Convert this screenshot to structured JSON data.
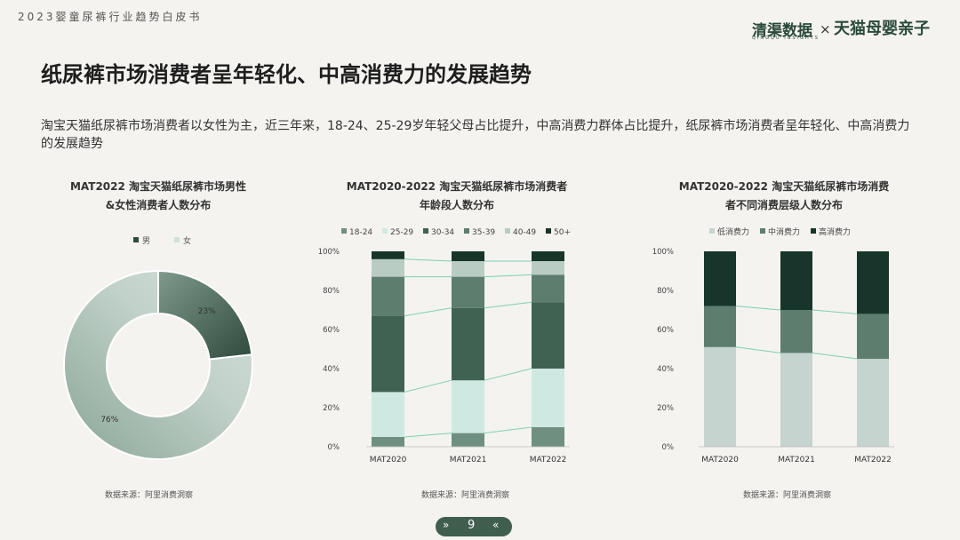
{
  "header": {
    "report_title": "2023婴童尿裤行业趋势白皮书",
    "logo_left": "清渠数据",
    "logo_left_sub": "QINGQU INSIGHTS",
    "logo_sep": "×",
    "logo_right": "天猫母婴亲子"
  },
  "slide": {
    "title": "纸尿裤市场消费者呈年轻化、中高消费力的发展趋势",
    "description": "淘宝天猫纸尿裤市场消费者以女性为主，近三年来，18-24、25-29岁年轻父母占比提升，中高消费力群体占比提升，纸尿裤市场消费者呈年轻化、中高消费力的发展趋势",
    "page_number": "9",
    "prev_icon": "»",
    "next_icon": "«"
  },
  "colors": {
    "male": "#2f4a3c",
    "female": "#d3dfd9",
    "age": [
      "#6f8f80",
      "#cfe9e2",
      "#3f6252",
      "#5d7d6e",
      "#b8ccc4",
      "#18352a"
    ],
    "spend": [
      "#c5d4cf",
      "#5d7d6e",
      "#17352a"
    ],
    "connector": "#7fcfb3"
  },
  "chart_data": [
    {
      "type": "pie",
      "donut": true,
      "title": "MAT2022 淘宝天猫纸尿裤市场男性&女性消费者人数分布",
      "title_lines": [
        "MAT2022 淘宝天猫纸尿裤市场男性",
        "&女性消费者人数分布"
      ],
      "legend_position": "top",
      "categories": [
        "男",
        "女"
      ],
      "values": [
        23,
        76
      ],
      "labels": [
        "23%",
        "76%"
      ],
      "source": "数据来源：阿里消费洞察"
    },
    {
      "type": "bar",
      "stacked": true,
      "title": "MAT2020-2022 淘宝天猫纸尿裤市场消费者年龄段人数分布",
      "title_lines": [
        "MAT2020-2022 淘宝天猫纸尿裤市场消费者",
        "年龄段人数分布"
      ],
      "legend_position": "top",
      "categories": [
        "MAT2020",
        "MAT2021",
        "MAT2022"
      ],
      "yticks": [
        "0%",
        "20%",
        "40%",
        "60%",
        "80%",
        "100%"
      ],
      "ylim": [
        0,
        100
      ],
      "series": [
        {
          "name": "18-24",
          "values": [
            5,
            7,
            10
          ]
        },
        {
          "name": "25-29",
          "values": [
            23,
            27,
            30
          ]
        },
        {
          "name": "30-34",
          "values": [
            39,
            37,
            34
          ]
        },
        {
          "name": "35-39",
          "values": [
            20,
            16,
            14
          ]
        },
        {
          "name": "40-49",
          "values": [
            9,
            8,
            7
          ]
        },
        {
          "name": "50+",
          "values": [
            4,
            5,
            5
          ]
        }
      ],
      "source": "数据来源：阿里消费洞察"
    },
    {
      "type": "bar",
      "stacked": true,
      "title": "MAT2020-2022 淘宝天猫纸尿裤市场消费者不同消费层级人数分布",
      "title_lines": [
        "MAT2020-2022 淘宝天猫纸尿裤市场消费",
        "者不同消费层级人数分布"
      ],
      "legend_position": "top",
      "categories": [
        "MAT2020",
        "MAT2021",
        "MAT2022"
      ],
      "yticks": [
        "0%",
        "20%",
        "40%",
        "60%",
        "80%",
        "100%"
      ],
      "ylim": [
        0,
        100
      ],
      "series": [
        {
          "name": "低消费力",
          "values": [
            51,
            48,
            45
          ]
        },
        {
          "name": "中消费力",
          "values": [
            21,
            22,
            23
          ]
        },
        {
          "name": "高消费力",
          "values": [
            28,
            30,
            32
          ]
        }
      ],
      "source": "数据来源：阿里消费洞察"
    }
  ]
}
